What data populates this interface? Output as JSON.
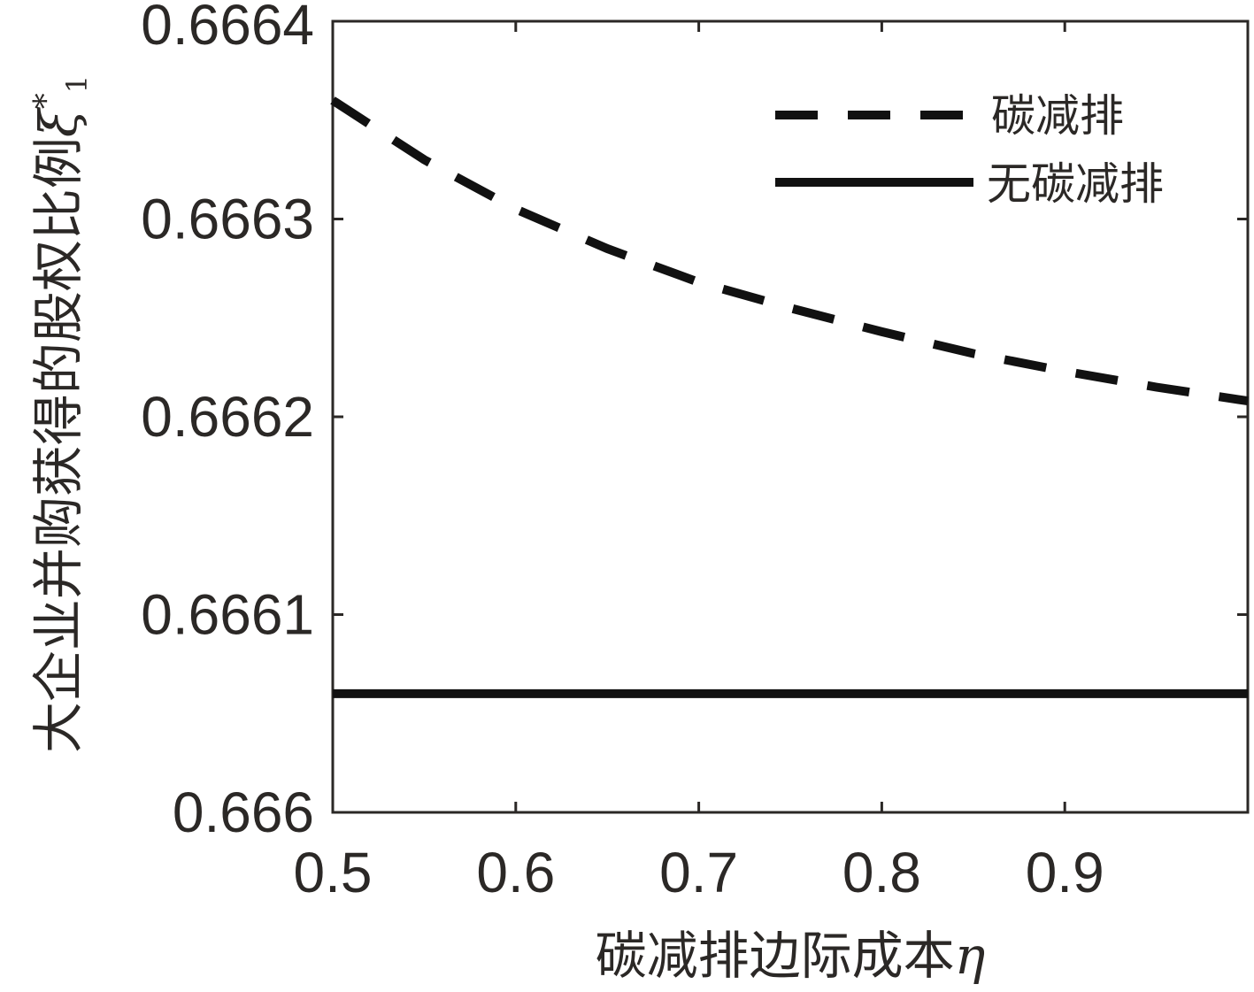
{
  "chart_data": {
    "type": "line",
    "xlabel": "碳减排边际成本",
    "xlabel_symbol": "η",
    "ylabel": "大企业并购获得的股权比例",
    "ylabel_symbol": "ξ",
    "ylabel_superscript": "*",
    "ylabel_subscript": "1",
    "xlim": [
      0.5,
      1.0
    ],
    "ylim": [
      0.666,
      0.6664
    ],
    "x_ticks": [
      0.5,
      0.6,
      0.7,
      0.8,
      0.9
    ],
    "x_tick_labels": [
      "0.5",
      "0.6",
      "0.7",
      "0.8",
      "0.9"
    ],
    "y_ticks": [
      0.666,
      0.6661,
      0.6662,
      0.6663,
      0.6664
    ],
    "y_tick_labels": [
      "0.666",
      "0.6661",
      "0.6662",
      "0.6663",
      "0.6664"
    ],
    "grid": false,
    "legend_position": "top-right",
    "series": [
      {
        "name": "碳减排",
        "style": "dashed",
        "color": "#111111",
        "x": [
          0.5,
          0.55,
          0.6,
          0.65,
          0.7,
          0.75,
          0.8,
          0.85,
          0.9,
          0.95,
          1.0
        ],
        "y": [
          0.66636,
          0.66633,
          0.666305,
          0.666285,
          0.666268,
          0.666255,
          0.666243,
          0.666232,
          0.666223,
          0.666215,
          0.666208
        ]
      },
      {
        "name": "无碳减排",
        "style": "solid",
        "color": "#111111",
        "x": [
          0.5,
          1.0
        ],
        "y": [
          0.66606,
          0.66606
        ]
      }
    ]
  }
}
